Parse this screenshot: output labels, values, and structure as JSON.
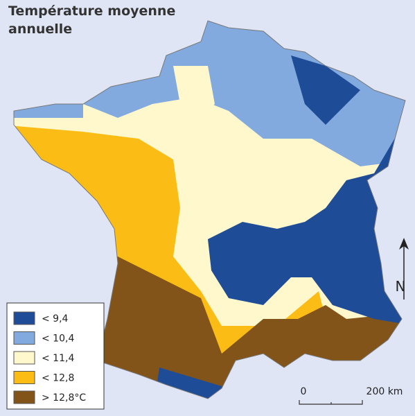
{
  "title": "Température moyenne annuelle",
  "legend": {
    "items": [
      {
        "label": "< 9,4",
        "color": "#1f4c96"
      },
      {
        "label": "< 10,4",
        "color": "#82aadf"
      },
      {
        "label": "< 11,4",
        "color": "#fff8cc"
      },
      {
        "label": "< 12,8",
        "color": "#fbbd15"
      },
      {
        "label": "> 12,8°C",
        "color": "#82541a"
      }
    ]
  },
  "scale": {
    "start": "0",
    "end": "200 km"
  },
  "north": "N"
}
